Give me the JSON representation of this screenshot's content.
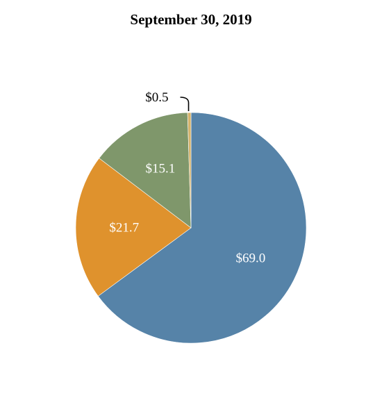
{
  "chart_data": {
    "type": "pie",
    "title": "September 30, 2019",
    "categories": [
      "",
      "",
      "",
      ""
    ],
    "values": [
      69.0,
      21.7,
      15.1,
      0.5
    ],
    "labels": [
      "$69.0",
      "$21.7",
      "$15.1",
      "$0.5"
    ],
    "colors": [
      "#5683a8",
      "#df922d",
      "#7f976b",
      "#d6b36c"
    ],
    "label_colors": [
      "#ffffff",
      "#ffffff",
      "#ffffff",
      "#000000"
    ],
    "start_angle_deg": 0,
    "direction": "clockwise"
  }
}
